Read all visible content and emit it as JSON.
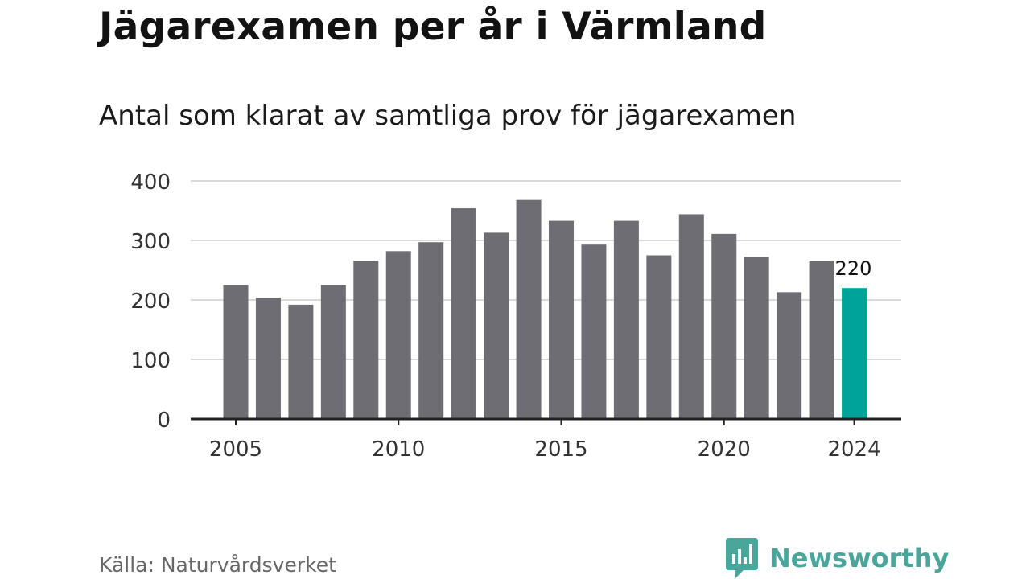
{
  "header": {
    "title": "Jägarexamen per år i Värmland",
    "subtitle": "Antal som klarat av samtliga prov för jägarexamen"
  },
  "footer": {
    "source": "Källa: Naturvårdsverket",
    "brand": "Newsworthy"
  },
  "colors": {
    "bar": "#6e6d73",
    "highlight": "#00a398",
    "grid": "#d9d9d9",
    "axis": "#222222",
    "brand": "#4aa69a"
  },
  "chart_data": {
    "type": "bar",
    "title": "Jägarexamen per år i Värmland",
    "subtitle": "Antal som klarat av samtliga prov för jägarexamen",
    "x": [
      2005,
      2006,
      2007,
      2008,
      2009,
      2010,
      2011,
      2012,
      2013,
      2014,
      2015,
      2016,
      2017,
      2018,
      2019,
      2020,
      2021,
      2022,
      2023,
      2024
    ],
    "values": [
      225,
      204,
      192,
      225,
      266,
      282,
      297,
      354,
      313,
      368,
      333,
      293,
      333,
      275,
      344,
      311,
      272,
      213,
      266,
      220
    ],
    "ylim": [
      0,
      400
    ],
    "yticks": [
      0,
      100,
      200,
      300,
      400
    ],
    "xticks": [
      2005,
      2010,
      2015,
      2020,
      2024
    ],
    "highlight": {
      "x": 2024,
      "label": "220"
    },
    "grid": true,
    "legend": "none"
  }
}
